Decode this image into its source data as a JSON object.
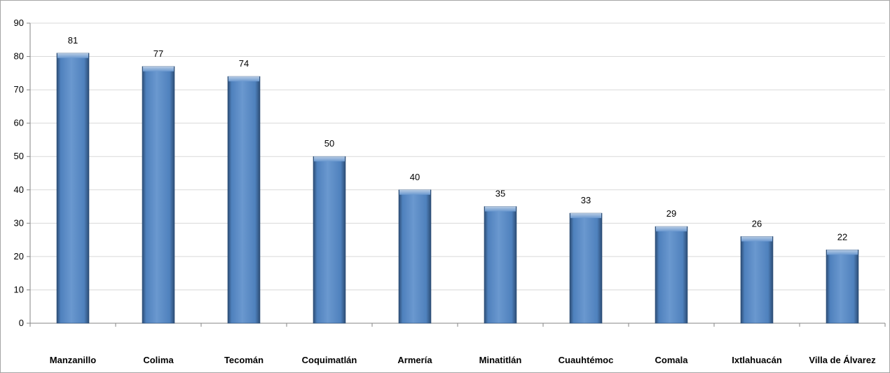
{
  "chart_data": {
    "type": "bar",
    "title": "",
    "xlabel": "",
    "ylabel": "",
    "categories": [
      "Manzanillo",
      "Colima",
      "Tecomán",
      "Coquimatlán",
      "Armería",
      "Minatitlán",
      "Cuauhtémoc",
      "Comala",
      "Ixtlahuacán",
      "Villa de Álvarez"
    ],
    "values": [
      81,
      77,
      74,
      50,
      40,
      35,
      33,
      29,
      26,
      22
    ],
    "data_labels": [
      "81",
      "77",
      "74",
      "50",
      "40",
      "35",
      "33",
      "29",
      "26",
      "22"
    ],
    "ylim": [
      0,
      90
    ],
    "yticks": [
      0,
      10,
      20,
      30,
      40,
      50,
      60,
      70,
      80,
      90
    ],
    "grid": true,
    "legend": "none",
    "colors": {
      "bar": "#4f81bd",
      "bar_light": "#95b3d7",
      "bar_dark": "#2c4d75",
      "grid": "#d9d9d9",
      "axis": "#868686"
    }
  }
}
